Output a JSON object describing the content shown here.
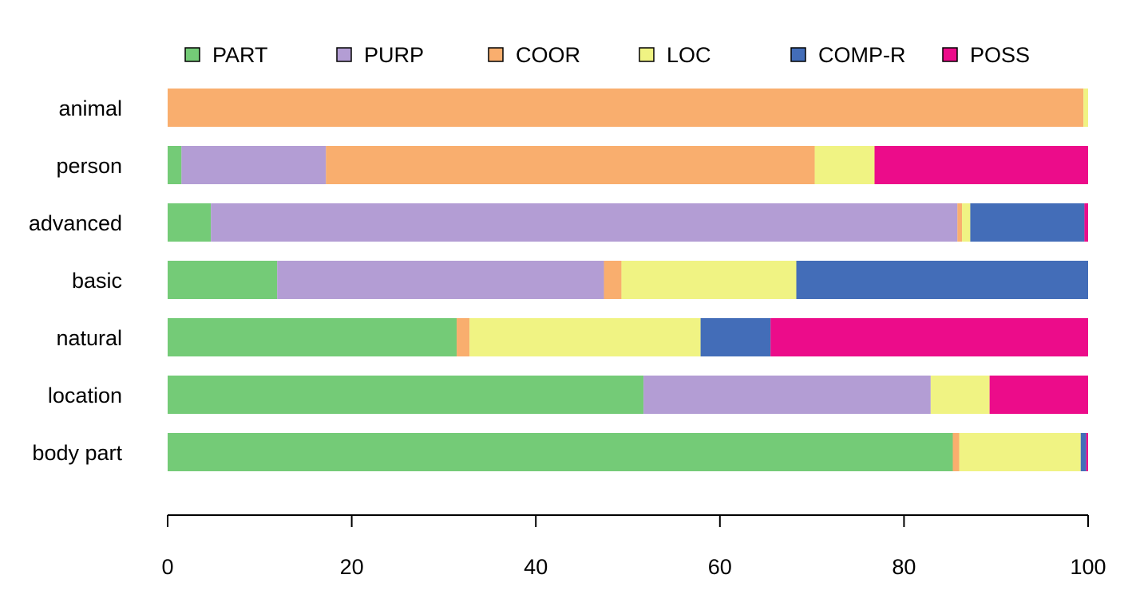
{
  "chart_data": {
    "type": "bar",
    "orientation": "horizontal",
    "stacked": true,
    "title": "",
    "xlabel": "",
    "ylabel": "",
    "xlim": [
      0,
      100
    ],
    "xticks": [
      "0",
      "20",
      "40",
      "60",
      "80",
      "100"
    ],
    "legend_position": "top",
    "categories": [
      "animal",
      "person",
      "advanced",
      "basic",
      "natural",
      "location",
      "body part"
    ],
    "series": [
      {
        "name": "PART",
        "color": "#74cb77",
        "values": [
          0,
          1.5,
          4.7,
          11.9,
          31.4,
          51.7,
          85.3
        ]
      },
      {
        "name": "PURP",
        "color": "#b39dd4",
        "values": [
          0,
          15.7,
          81.1,
          35.5,
          0,
          31.2,
          0
        ]
      },
      {
        "name": "COOR",
        "color": "#f9ae6e",
        "values": [
          99.5,
          53.1,
          0.5,
          1.9,
          1.4,
          0,
          0.7
        ]
      },
      {
        "name": "LOC",
        "color": "#f0f383",
        "values": [
          0.5,
          6.5,
          0.9,
          19.0,
          25.1,
          6.4,
          13.2
        ]
      },
      {
        "name": "COMP-R",
        "color": "#436db8",
        "values": [
          0,
          0,
          12.4,
          31.7,
          7.6,
          0,
          0.6
        ]
      },
      {
        "name": "POSS",
        "color": "#ec0c8a",
        "values": [
          0,
          23.2,
          0.4,
          0,
          34.5,
          10.7,
          0.2
        ]
      }
    ]
  }
}
